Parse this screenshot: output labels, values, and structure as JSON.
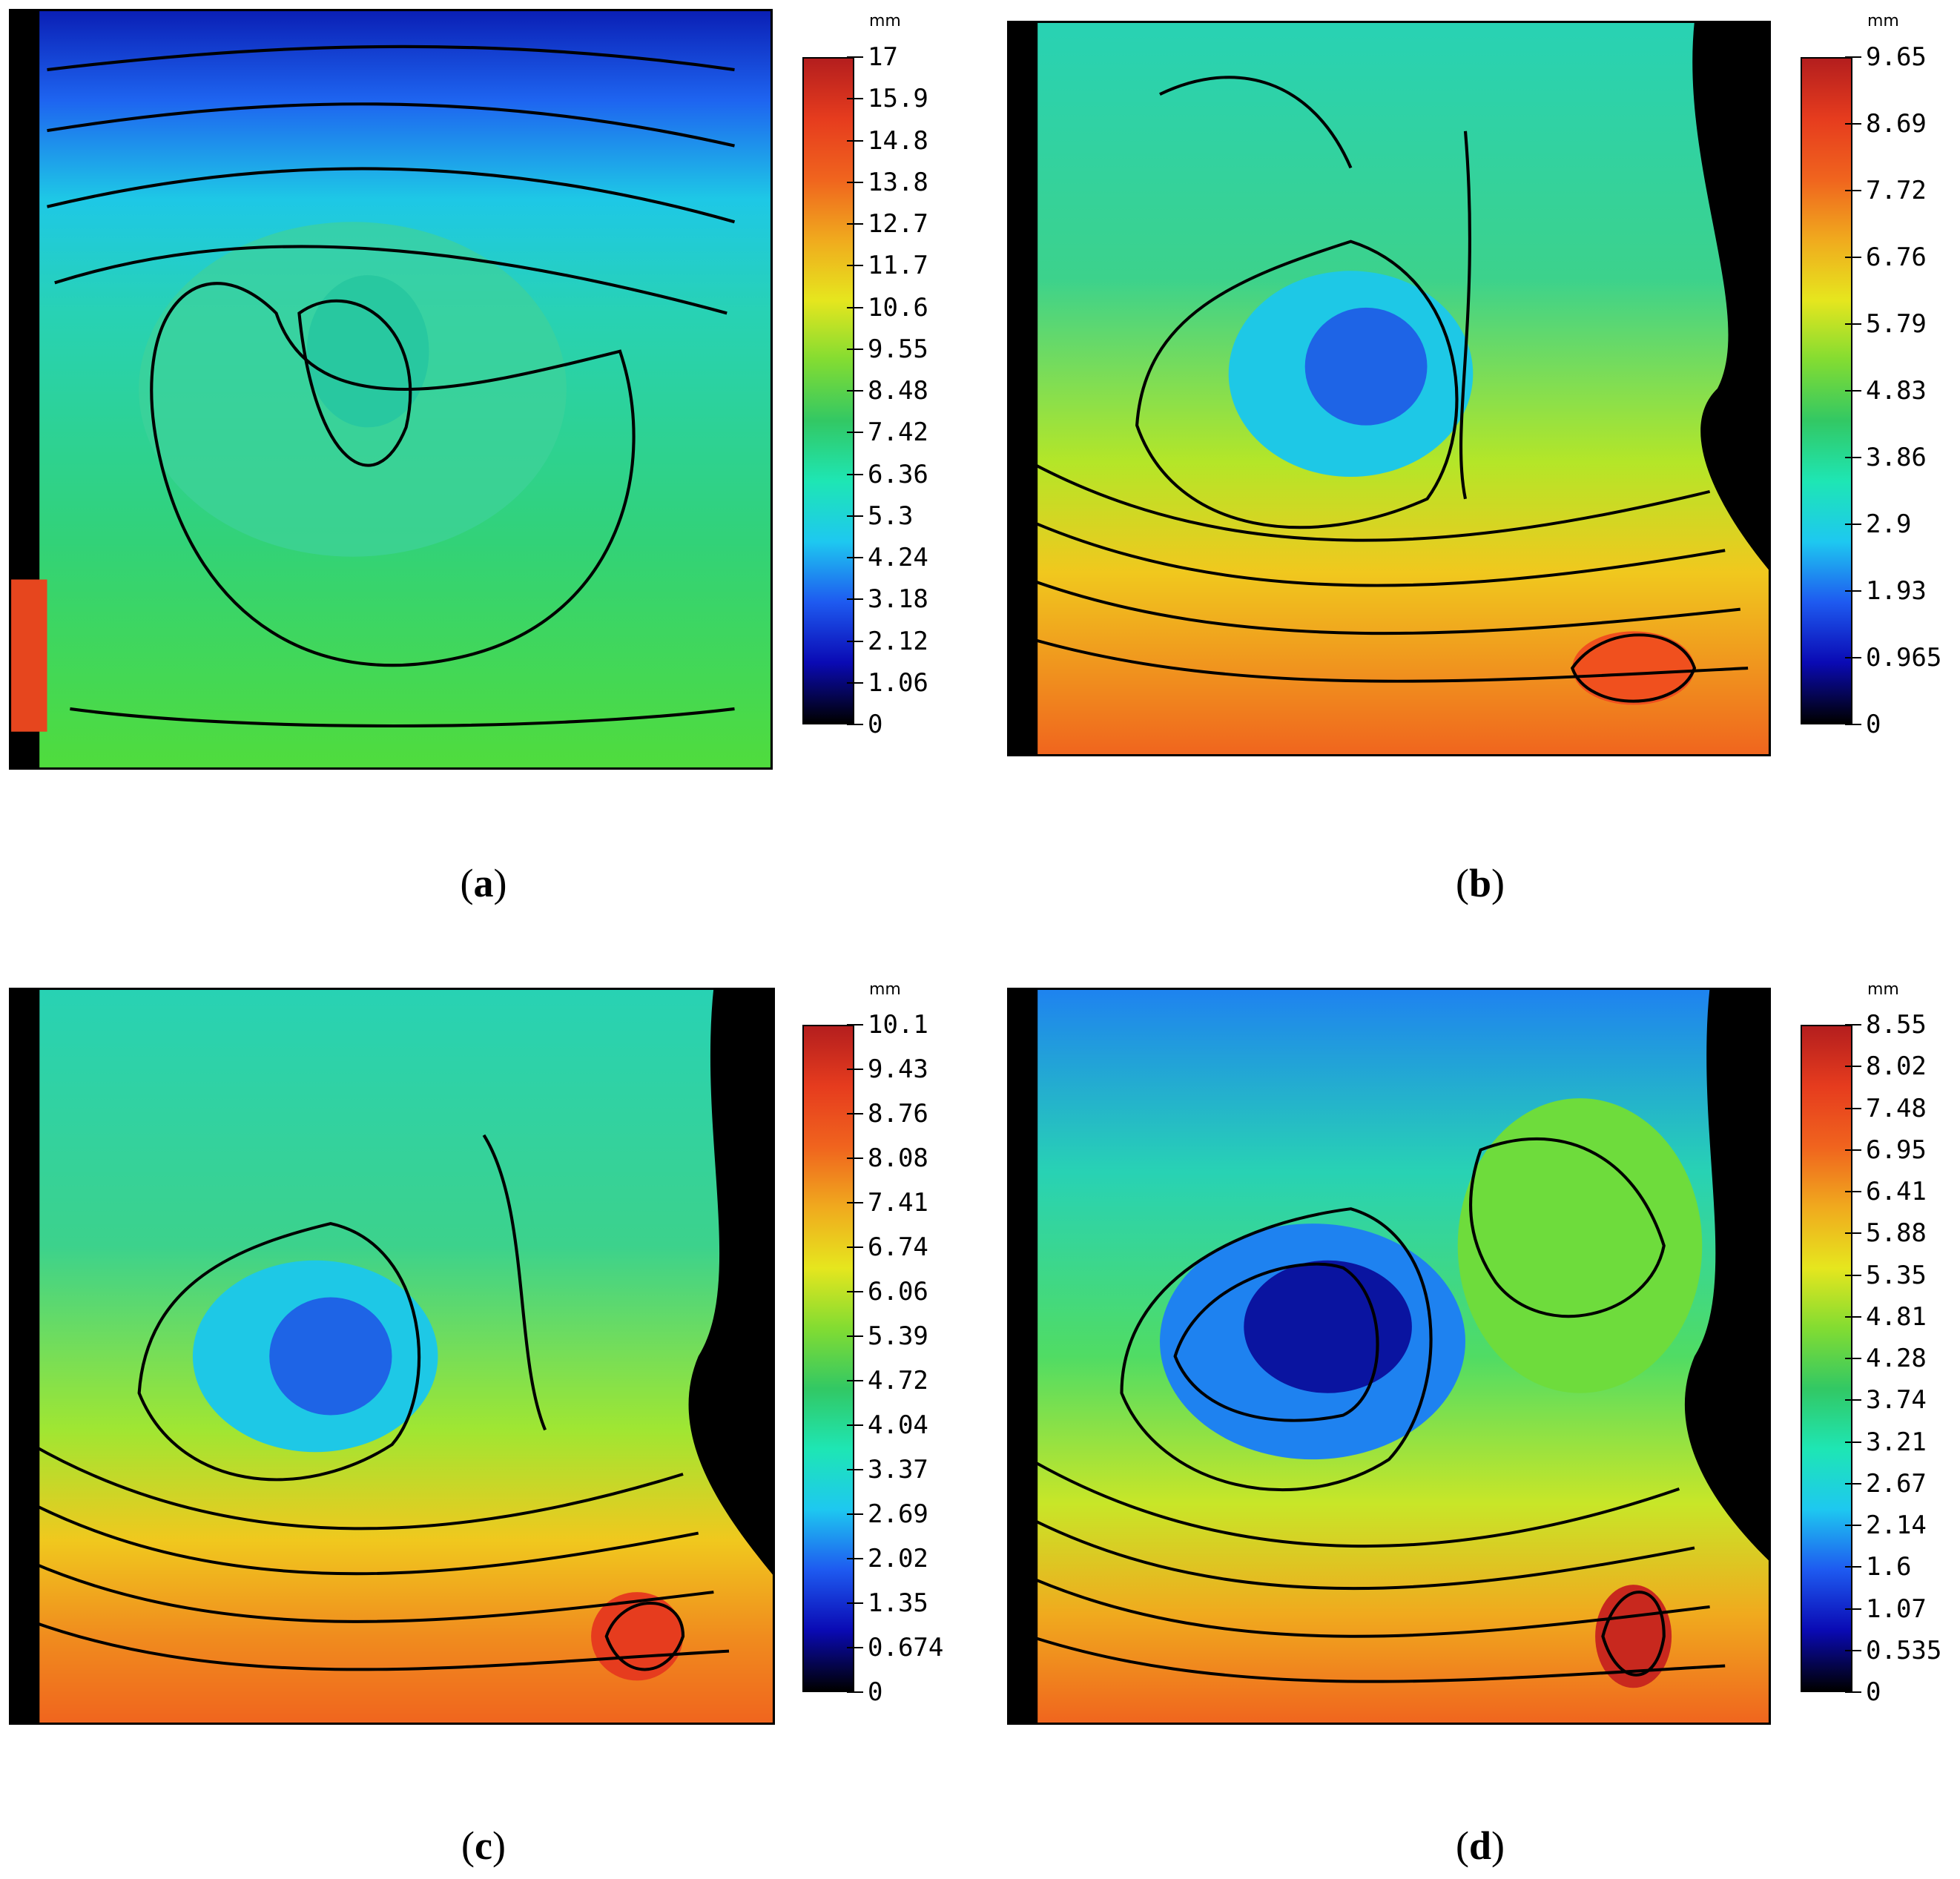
{
  "colors": {
    "colormap": [
      "#000000",
      "#0a0ab4",
      "#1e5af0",
      "#1ec8f0",
      "#1ee6b4",
      "#32c864",
      "#82dc32",
      "#e6e61e",
      "#f0aa1e",
      "#f0641e",
      "#e63c1e",
      "#b41e1e"
    ],
    "contour": "#000000"
  },
  "panels": [
    {
      "id": "a",
      "caption": "a",
      "unit": "mm",
      "ticks": [
        "17",
        "15.9",
        "14.8",
        "13.8",
        "12.7",
        "11.7",
        "10.6",
        "9.55",
        "8.48",
        "7.42",
        "6.36",
        "5.3",
        "4.24",
        "3.18",
        "2.12",
        "1.06",
        "0"
      ]
    },
    {
      "id": "b",
      "caption": "b",
      "unit": "mm",
      "ticks": [
        "9.65",
        "8.69",
        "7.72",
        "6.76",
        "5.79",
        "4.83",
        "3.86",
        "2.9",
        "1.93",
        "0.965",
        "0"
      ]
    },
    {
      "id": "c",
      "caption": "c",
      "unit": "mm",
      "ticks": [
        "10.1",
        "9.43",
        "8.76",
        "8.08",
        "7.41",
        "6.74",
        "6.06",
        "5.39",
        "4.72",
        "4.04",
        "3.37",
        "2.69",
        "2.02",
        "1.35",
        "0.674",
        "0"
      ]
    },
    {
      "id": "d",
      "caption": "d",
      "unit": "mm",
      "ticks": [
        "8.55",
        "8.02",
        "7.48",
        "6.95",
        "6.41",
        "5.88",
        "5.35",
        "4.81",
        "4.28",
        "3.74",
        "3.21",
        "2.67",
        "2.14",
        "1.6",
        "1.07",
        "0.535",
        "0"
      ]
    }
  ]
}
